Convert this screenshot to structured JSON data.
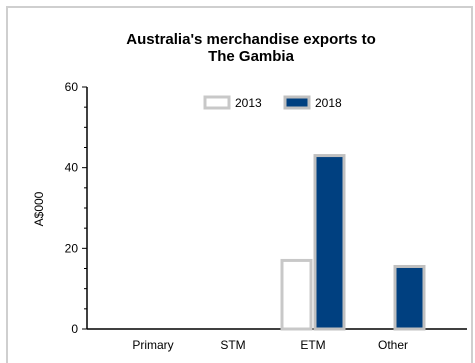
{
  "chart_data": {
    "type": "bar",
    "title_lines": [
      "Australia's merchandise exports to",
      "The Gambia"
    ],
    "ylabel": "A$000",
    "xlabel": "",
    "categories": [
      "Primary",
      "STM",
      "ETM",
      "Other"
    ],
    "ylim": [
      0,
      60
    ],
    "yticks": [
      0,
      20,
      40,
      60
    ],
    "legend_position": "top-center",
    "grid": false,
    "series": [
      {
        "name": "2013",
        "values": [
          0,
          0,
          17,
          0
        ],
        "fill": "#ffffff",
        "stroke": "#c8c8c8"
      },
      {
        "name": "2018",
        "values": [
          0,
          0,
          43,
          15.5
        ],
        "fill": "#004080",
        "stroke": "#c0c0c0"
      }
    ]
  }
}
